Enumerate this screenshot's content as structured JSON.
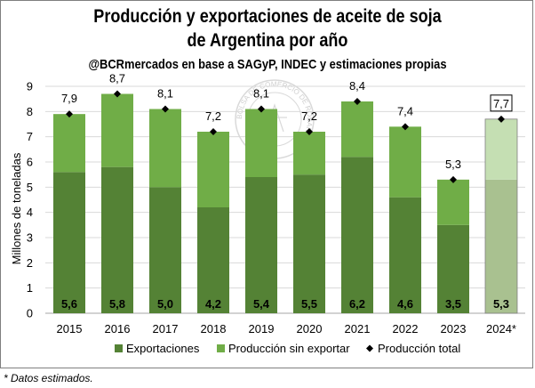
{
  "chart_data": {
    "type": "bar",
    "title_line1": "Producción y exportaciones de aceite de soja",
    "title_line2": "de Argentina por año",
    "subtitle": "@BCRmercados en base a SAGyP, INDEC y estimaciones propias",
    "ylabel": "Millones de toneladas",
    "xlabel": "",
    "ylim": [
      0,
      9
    ],
    "yticks": [
      0,
      1,
      2,
      3,
      4,
      5,
      6,
      7,
      8,
      9
    ],
    "categories": [
      "2015",
      "2016",
      "2017",
      "2018",
      "2019",
      "2020",
      "2021",
      "2022",
      "2023",
      "2024*"
    ],
    "series": [
      {
        "name": "Exportaciones",
        "values": [
          5.6,
          5.8,
          5.0,
          4.2,
          5.4,
          5.5,
          6.2,
          4.6,
          3.5,
          5.3
        ],
        "labels": [
          "5,6",
          "5,8",
          "5,0",
          "4,2",
          "5,4",
          "5,5",
          "6,2",
          "4,6",
          "3,5",
          "5,3"
        ],
        "color": "#548235",
        "estimated_color": "#a9c190"
      },
      {
        "name": "Producción sin exportar",
        "values": [
          2.3,
          2.9,
          3.1,
          3.0,
          2.7,
          1.7,
          2.2,
          2.8,
          1.8,
          2.4
        ],
        "color": "#70ad47",
        "estimated_color": "#c5dfb3"
      },
      {
        "name": "Producción total",
        "values": [
          7.9,
          8.7,
          8.1,
          7.2,
          8.1,
          7.2,
          8.4,
          7.4,
          5.3,
          7.7
        ],
        "labels": [
          "7,9",
          "8,7",
          "8,1",
          "7,2",
          "8,1",
          "7,2",
          "8,4",
          "7,4",
          "5,3",
          "7,7"
        ],
        "color": "#000000"
      }
    ],
    "estimated_index": 9,
    "grid": true,
    "legend_position": "bottom",
    "watermark": "BOLSA DE COMERCIO DE ROSARIO"
  },
  "footnote": "* Datos estimados."
}
